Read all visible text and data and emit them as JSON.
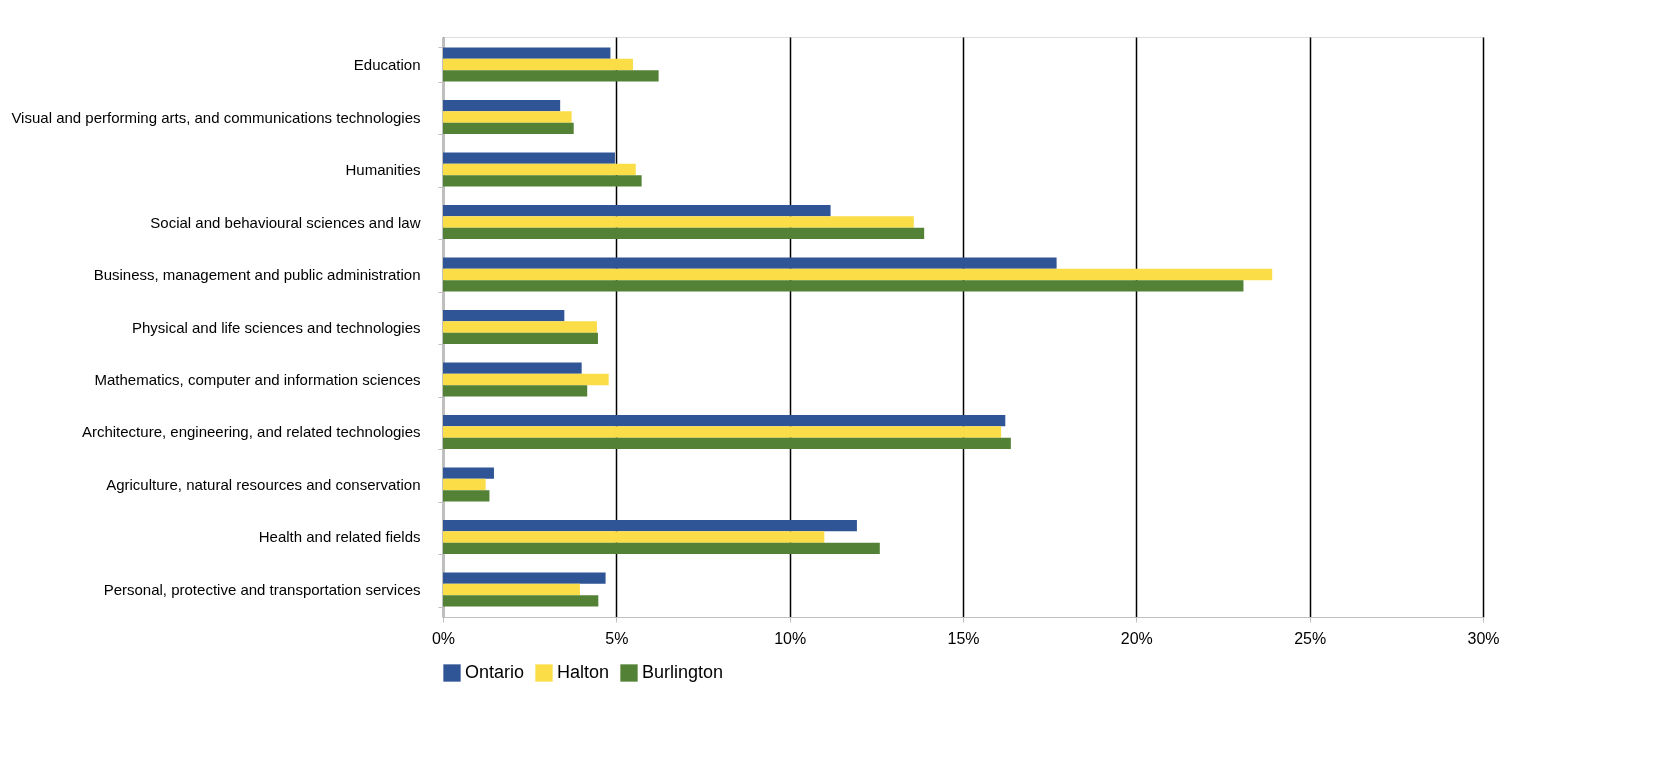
{
  "chart_data": {
    "type": "bar",
    "orientation": "horizontal",
    "categories": [
      "Education",
      "Visual and performing arts, and communications technologies",
      "Humanities",
      "Social and behavioural sciences and law",
      "Business, management and public administration",
      "Physical and life sciences and technologies",
      "Mathematics, computer and information sciences",
      "Architecture, engineering, and related technologies",
      "Agriculture, natural resources and conservation",
      "Health and related fields",
      "Personal, protective and transportation services"
    ],
    "series": [
      {
        "name": "Ontario",
        "color": "#2f5597",
        "values": [
          4.83,
          3.38,
          4.96,
          11.18,
          17.7,
          3.5,
          4.0,
          16.22,
          1.47,
          11.94,
          4.69
        ]
      },
      {
        "name": "Halton",
        "color": "#fadd47",
        "values": [
          5.48,
          3.71,
          5.56,
          13.58,
          23.92,
          4.44,
          4.78,
          16.1,
          1.23,
          11.0,
          3.95
        ]
      },
      {
        "name": "Burlington",
        "color": "#538135",
        "values": [
          6.22,
          3.77,
          5.73,
          13.88,
          23.09,
          4.47,
          4.16,
          16.38,
          1.34,
          12.6,
          4.48
        ]
      }
    ],
    "xlim": [
      0,
      30
    ],
    "xticks": [
      {
        "value": 0,
        "label": "0%"
      },
      {
        "value": 5,
        "label": "5%"
      },
      {
        "value": 10,
        "label": "10%"
      },
      {
        "value": 15,
        "label": "15%"
      },
      {
        "value": 20,
        "label": "20%"
      },
      {
        "value": 25,
        "label": "25%"
      },
      {
        "value": 30,
        "label": "30%"
      }
    ],
    "grid": "x",
    "legend": "bottom"
  }
}
